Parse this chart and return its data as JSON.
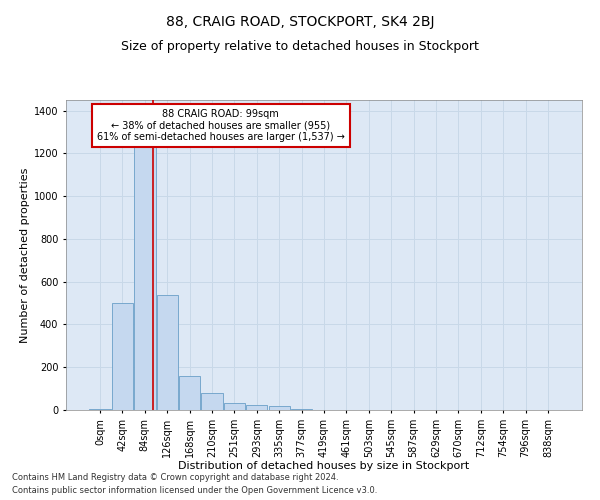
{
  "title": "88, CRAIG ROAD, STOCKPORT, SK4 2BJ",
  "subtitle": "Size of property relative to detached houses in Stockport",
  "xlabel": "Distribution of detached houses by size in Stockport",
  "ylabel": "Number of detached properties",
  "footer_line1": "Contains HM Land Registry data © Crown copyright and database right 2024.",
  "footer_line2": "Contains public sector information licensed under the Open Government Licence v3.0.",
  "bar_labels": [
    "0sqm",
    "42sqm",
    "84sqm",
    "126sqm",
    "168sqm",
    "210sqm",
    "251sqm",
    "293sqm",
    "335sqm",
    "377sqm",
    "419sqm",
    "461sqm",
    "503sqm",
    "545sqm",
    "587sqm",
    "629sqm",
    "670sqm",
    "712sqm",
    "754sqm",
    "796sqm",
    "838sqm"
  ],
  "bar_values": [
    5,
    500,
    1260,
    540,
    160,
    80,
    35,
    25,
    20,
    5,
    0,
    0,
    0,
    0,
    0,
    0,
    0,
    0,
    0,
    0,
    0
  ],
  "bar_color": "#c5d8ef",
  "bar_edge_color": "#6a9fc8",
  "vline_color": "#cc0000",
  "annotation_text": "88 CRAIG ROAD: 99sqm\n← 38% of detached houses are smaller (955)\n61% of semi-detached houses are larger (1,537) →",
  "annotation_box_color": "#ffffff",
  "annotation_box_edge_color": "#cc0000",
  "ylim": [
    0,
    1450
  ],
  "yticks": [
    0,
    200,
    400,
    600,
    800,
    1000,
    1200,
    1400
  ],
  "grid_color": "#c8d8e8",
  "bg_color": "#dde8f5",
  "title_fontsize": 10,
  "subtitle_fontsize": 9,
  "axis_label_fontsize": 8,
  "tick_fontsize": 7,
  "footer_fontsize": 6
}
